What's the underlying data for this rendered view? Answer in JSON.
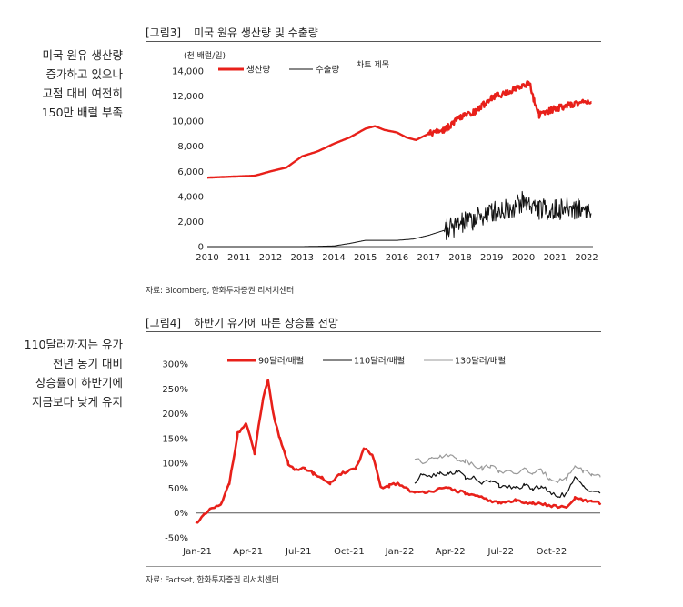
{
  "sidebar_top": [
    "미국 원유 생산량",
    "증가하고 있으나",
    "고점 대비 여전히",
    "150만 배럴 부족"
  ],
  "sidebar_bottom": [
    "110달러까지는 유가",
    "전년 동기 대비",
    "상승률이 하반기에",
    "지금보다 낮게 유지"
  ],
  "colors": {
    "red": "#e8201a",
    "black": "#111111",
    "gray": "#9a9a9a"
  },
  "chart_data": [
    {
      "type": "line",
      "fig_label": "[그림3]",
      "title": "미국 원유 생산량 및 수출량",
      "unit_label": "(천 배럴/일)",
      "annotation": "차트 제목",
      "source": "자료: Bloomberg, 한화투자증권 리서치센터",
      "x_ticks": [
        "2010",
        "2011",
        "2012",
        "2013",
        "2014",
        "2015",
        "2016",
        "2017",
        "2018",
        "2019",
        "2020",
        "2021",
        "2022"
      ],
      "y_ticks": [
        "0",
        "2,000",
        "4,000",
        "6,000",
        "8,000",
        "10,000",
        "12,000",
        "14,000"
      ],
      "ylim": [
        0,
        14000
      ],
      "xlim": [
        2010,
        2022.2
      ],
      "legend_position": "top-left",
      "series": [
        {
          "name": "생산량",
          "color": "red",
          "x": [
            2010,
            2010.5,
            2011,
            2011.5,
            2012,
            2012.5,
            2013,
            2013.5,
            2014,
            2014.5,
            2015,
            2015.3,
            2015.6,
            2016,
            2016.3,
            2016.6,
            2017,
            2017.5,
            2018,
            2018.5,
            2019,
            2019.5,
            2020,
            2020.2,
            2020.35,
            2020.5,
            2021,
            2021.5,
            2022,
            2022.15
          ],
          "y": [
            5500,
            5550,
            5600,
            5650,
            6000,
            6300,
            7200,
            7600,
            8200,
            8700,
            9400,
            9600,
            9300,
            9100,
            8700,
            8500,
            9000,
            9300,
            10300,
            10800,
            11900,
            12300,
            12900,
            13000,
            11500,
            10500,
            11000,
            11300,
            11600,
            11500
          ]
        },
        {
          "name": "수출량",
          "color": "black",
          "x": [
            2010,
            2011,
            2012,
            2013,
            2014,
            2014.5,
            2015,
            2016,
            2016.5,
            2017,
            2017.5,
            2018,
            2018.5,
            2019,
            2019.5,
            2020,
            2020.2,
            2020.5,
            2021,
            2021.5,
            2022,
            2022.15
          ],
          "y": [
            0,
            0,
            0,
            0,
            50,
            250,
            500,
            500,
            600,
            900,
            1300,
            1800,
            2200,
            2800,
            3000,
            3600,
            3400,
            3000,
            2900,
            3100,
            3000,
            2600
          ]
        }
      ]
    },
    {
      "type": "line",
      "fig_label": "[그림4]",
      "title": "하반기 유가에 따른 상승률 전망",
      "source": "자료: Factset, 한화투자증권 리서치센터",
      "x_ticks": [
        "Jan-21",
        "Apr-21",
        "Jul-21",
        "Oct-21",
        "Jan-22",
        "Apr-22",
        "Jul-22",
        "Oct-22"
      ],
      "y_ticks": [
        "-50%",
        "0%",
        "50%",
        "100%",
        "150%",
        "200%",
        "250%",
        "300%"
      ],
      "ylim": [
        -50,
        300
      ],
      "xlim": [
        0,
        24
      ],
      "legend_position": "top-center",
      "series": [
        {
          "name": "90달러/배럴",
          "color": "red",
          "x": [
            0,
            0.5,
            1,
            1.5,
            2,
            2.5,
            3,
            3.5,
            4,
            4.3,
            4.6,
            5,
            5.5,
            6,
            6.5,
            7,
            7.5,
            8,
            8.5,
            9,
            9.5,
            10,
            10.5,
            11,
            11.5,
            12,
            13,
            14,
            15,
            16,
            17,
            18,
            19,
            20,
            21,
            22,
            22.5,
            23,
            23.5,
            24
          ],
          "y": [
            -20,
            -5,
            10,
            15,
            60,
            160,
            180,
            120,
            230,
            265,
            200,
            150,
            100,
            85,
            90,
            80,
            70,
            60,
            75,
            85,
            90,
            130,
            115,
            50,
            55,
            60,
            40,
            45,
            50,
            40,
            30,
            20,
            25,
            20,
            15,
            10,
            30,
            25,
            22,
            20
          ]
        },
        {
          "name": "110달러/배럴",
          "color": "black",
          "x": [
            13,
            13.5,
            14,
            14.5,
            15,
            15.5,
            16,
            16.5,
            17,
            17.5,
            18,
            18.5,
            19,
            19.5,
            20,
            20.5,
            21,
            21.5,
            22,
            22.5,
            23,
            23.5,
            24
          ],
          "y": [
            60,
            80,
            75,
            82,
            78,
            85,
            72,
            70,
            60,
            65,
            55,
            52,
            50,
            55,
            48,
            55,
            40,
            35,
            38,
            70,
            55,
            45,
            40
          ]
        },
        {
          "name": "130달러/배럴",
          "color": "gray",
          "x": [
            13,
            13.5,
            14,
            14.5,
            15,
            15.5,
            16,
            16.5,
            17,
            17.5,
            18,
            18.5,
            19,
            19.5,
            20,
            20.5,
            21,
            21.5,
            22,
            22.5,
            23,
            23.5,
            24
          ],
          "y": [
            110,
            100,
            115,
            112,
            118,
            108,
            105,
            98,
            90,
            95,
            85,
            82,
            80,
            88,
            80,
            85,
            70,
            65,
            70,
            95,
            85,
            78,
            72
          ]
        }
      ]
    }
  ]
}
